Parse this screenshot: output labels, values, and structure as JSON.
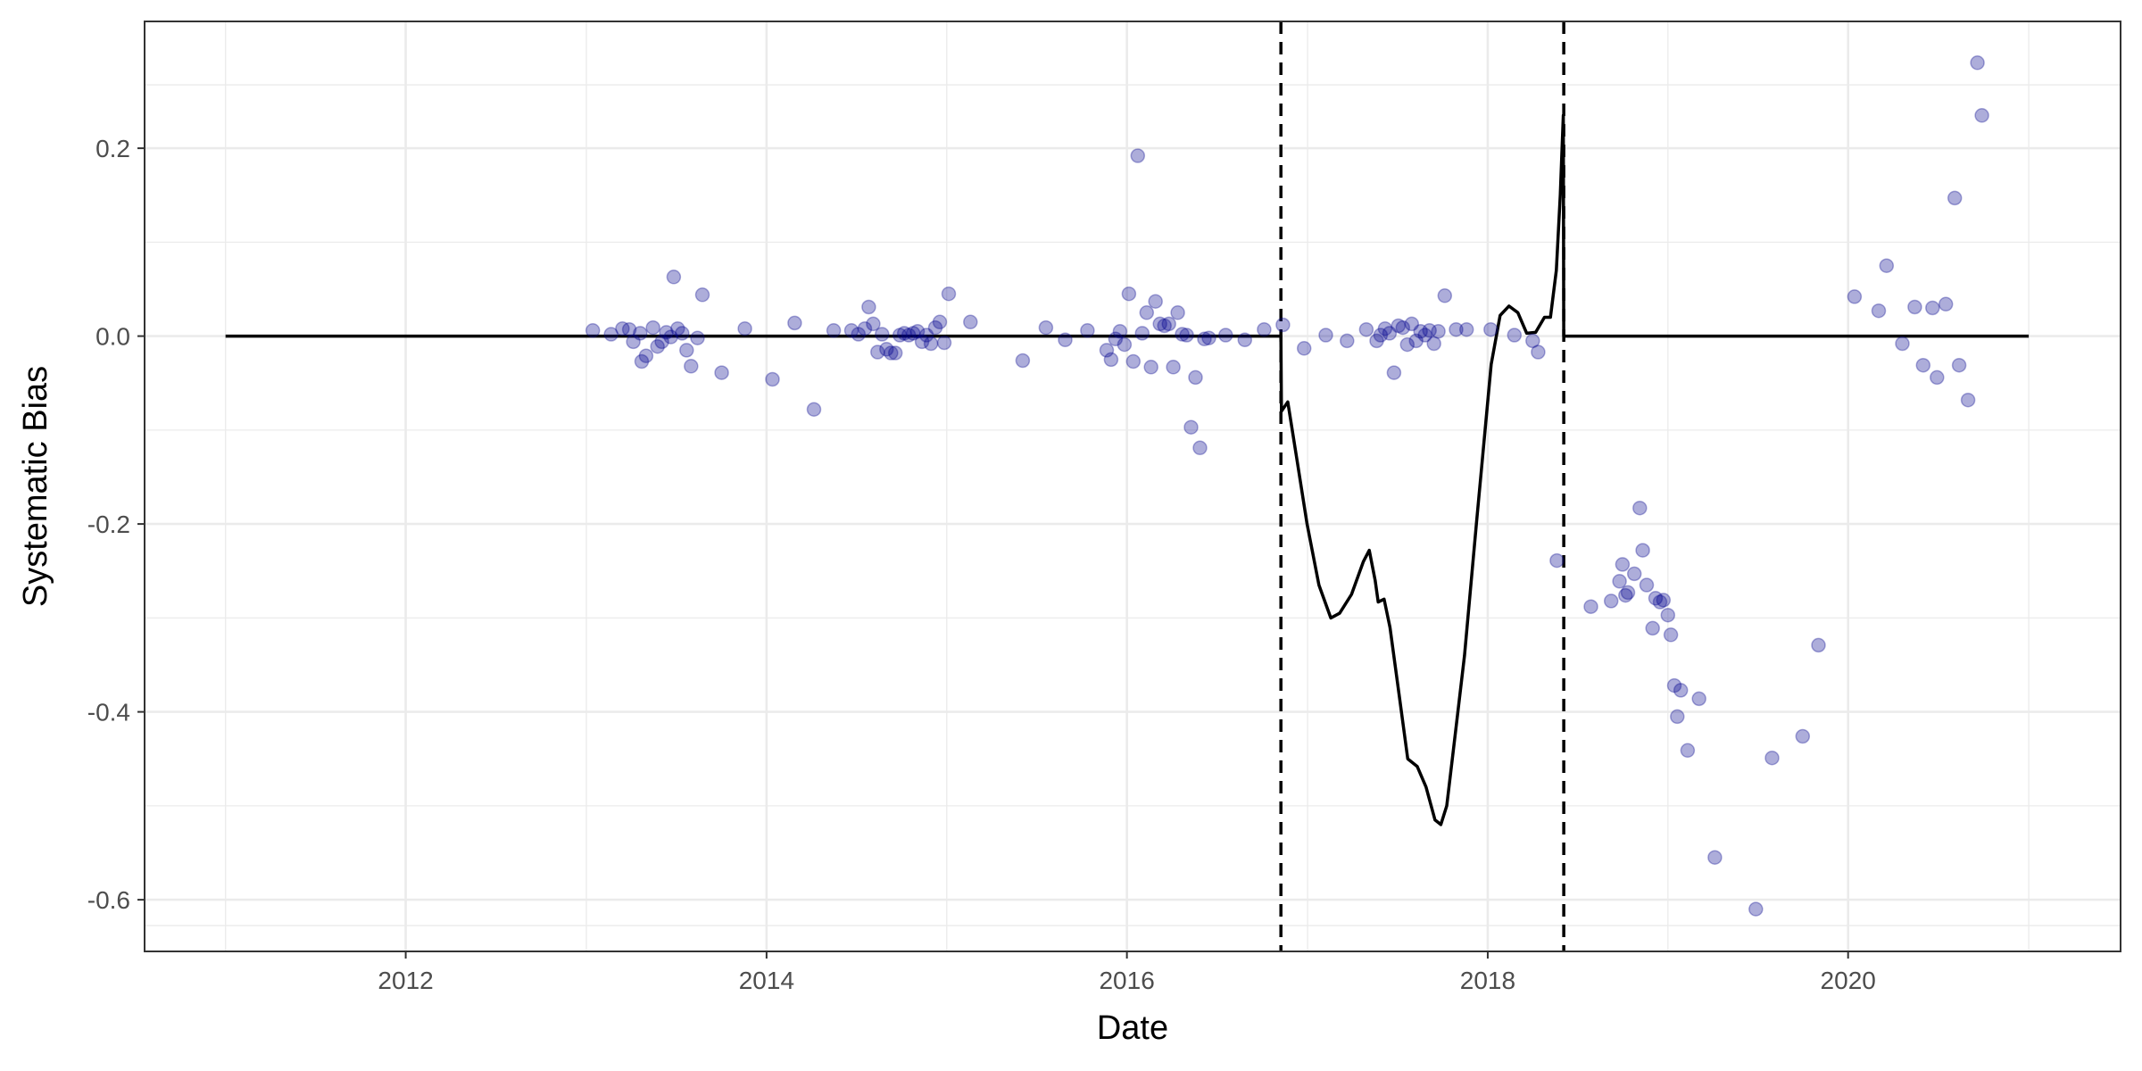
{
  "chart_data": {
    "type": "scatter",
    "title": "",
    "xlabel": "Date",
    "ylabel": "Systematic Bias",
    "x_axis": {
      "kind": "date",
      "range": [
        "2010-07-21",
        "2021-07-06"
      ],
      "ticks": [
        "2012",
        "2014",
        "2016",
        "2018",
        "2020"
      ]
    },
    "y_axis": {
      "range": [
        -0.655,
        0.335
      ],
      "ticks": [
        -0.6,
        -0.4,
        -0.2,
        0.0,
        0.2
      ],
      "tick_labels": [
        "-0.6",
        "-0.4",
        "-0.2",
        "0.0",
        "0.2"
      ]
    },
    "grid": true,
    "legend": "none",
    "colors": {
      "points": "#00008b",
      "line": "#000000",
      "vlines": "#000000",
      "grid": "#ebebeb",
      "panel_border": "#333333"
    },
    "vertical_lines": [
      "2016-11-08",
      "2018-06-04"
    ],
    "series": [
      {
        "type": "scatter",
        "points": [
          {
            "x": "2013-01-14",
            "y": 0.006
          },
          {
            "x": "2013-02-20",
            "y": 0.002
          },
          {
            "x": "2013-03-15",
            "y": 0.008
          },
          {
            "x": "2013-03-29",
            "y": 0.007
          },
          {
            "x": "2013-04-06",
            "y": -0.006
          },
          {
            "x": "2013-04-20",
            "y": 0.003
          },
          {
            "x": "2013-04-23",
            "y": -0.027
          },
          {
            "x": "2013-05-02",
            "y": -0.021
          },
          {
            "x": "2013-05-16",
            "y": 0.009
          },
          {
            "x": "2013-05-25",
            "y": -0.011
          },
          {
            "x": "2013-06-03",
            "y": -0.006
          },
          {
            "x": "2013-06-12",
            "y": 0.004
          },
          {
            "x": "2013-06-21",
            "y": -0.001
          },
          {
            "x": "2013-06-27",
            "y": 0.063
          },
          {
            "x": "2013-07-05",
            "y": 0.008
          },
          {
            "x": "2013-07-14",
            "y": 0.003
          },
          {
            "x": "2013-07-23",
            "y": -0.015
          },
          {
            "x": "2013-08-01",
            "y": -0.032
          },
          {
            "x": "2013-08-14",
            "y": -0.002
          },
          {
            "x": "2013-08-24",
            "y": 0.044
          },
          {
            "x": "2013-10-02",
            "y": -0.039
          },
          {
            "x": "2013-11-18",
            "y": 0.008
          },
          {
            "x": "2014-01-13",
            "y": -0.046
          },
          {
            "x": "2014-02-27",
            "y": 0.014
          },
          {
            "x": "2014-04-07",
            "y": -0.078
          },
          {
            "x": "2014-05-17",
            "y": 0.006
          },
          {
            "x": "2014-06-22",
            "y": 0.006
          },
          {
            "x": "2014-07-06",
            "y": 0.002
          },
          {
            "x": "2014-07-19",
            "y": 0.008
          },
          {
            "x": "2014-07-27",
            "y": 0.031
          },
          {
            "x": "2014-08-05",
            "y": 0.013
          },
          {
            "x": "2014-08-14",
            "y": -0.017
          },
          {
            "x": "2014-08-23",
            "y": 0.002
          },
          {
            "x": "2014-09-01",
            "y": -0.014
          },
          {
            "x": "2014-09-10",
            "y": -0.018
          },
          {
            "x": "2014-09-19",
            "y": -0.018
          },
          {
            "x": "2014-09-28",
            "y": 0.001
          },
          {
            "x": "2014-10-07",
            "y": 0.003
          },
          {
            "x": "2014-10-16",
            "y": 0.001
          },
          {
            "x": "2014-10-25",
            "y": 0.003
          },
          {
            "x": "2014-11-03",
            "y": 0.005
          },
          {
            "x": "2014-11-12",
            "y": -0.006
          },
          {
            "x": "2014-11-21",
            "y": 0.001
          },
          {
            "x": "2014-11-30",
            "y": -0.008
          },
          {
            "x": "2014-12-09",
            "y": 0.009
          },
          {
            "x": "2014-12-18",
            "y": 0.015
          },
          {
            "x": "2014-12-27",
            "y": -0.007
          },
          {
            "x": "2015-01-05",
            "y": 0.045
          },
          {
            "x": "2015-02-18",
            "y": 0.015
          },
          {
            "x": "2015-06-04",
            "y": -0.026
          },
          {
            "x": "2015-07-21",
            "y": 0.009
          },
          {
            "x": "2015-08-29",
            "y": -0.004
          },
          {
            "x": "2015-10-13",
            "y": 0.006
          },
          {
            "x": "2015-11-21",
            "y": -0.015
          },
          {
            "x": "2015-11-30",
            "y": -0.025
          },
          {
            "x": "2015-12-09",
            "y": -0.003
          },
          {
            "x": "2015-12-18",
            "y": 0.005
          },
          {
            "x": "2015-12-27",
            "y": -0.009
          },
          {
            "x": "2016-01-05",
            "y": 0.045
          },
          {
            "x": "2016-01-14",
            "y": -0.027
          },
          {
            "x": "2016-01-23",
            "y": 0.192
          },
          {
            "x": "2016-02-01",
            "y": 0.003
          },
          {
            "x": "2016-02-10",
            "y": 0.025
          },
          {
            "x": "2016-02-19",
            "y": -0.033
          },
          {
            "x": "2016-02-28",
            "y": 0.037
          },
          {
            "x": "2016-03-08",
            "y": 0.013
          },
          {
            "x": "2016-03-17",
            "y": 0.011
          },
          {
            "x": "2016-03-26",
            "y": 0.013
          },
          {
            "x": "2016-04-04",
            "y": -0.033
          },
          {
            "x": "2016-04-13",
            "y": 0.025
          },
          {
            "x": "2016-04-22",
            "y": 0.002
          },
          {
            "x": "2016-05-01",
            "y": 0.001
          },
          {
            "x": "2016-05-10",
            "y": -0.097
          },
          {
            "x": "2016-05-19",
            "y": -0.044
          },
          {
            "x": "2016-05-28",
            "y": -0.119
          },
          {
            "x": "2016-06-06",
            "y": -0.003
          },
          {
            "x": "2016-06-15",
            "y": -0.002
          },
          {
            "x": "2016-07-19",
            "y": 0.001
          },
          {
            "x": "2016-08-27",
            "y": -0.004
          },
          {
            "x": "2016-10-05",
            "y": 0.007
          },
          {
            "x": "2016-11-12",
            "y": 0.012
          },
          {
            "x": "2016-12-25",
            "y": -0.013
          },
          {
            "x": "2017-02-07",
            "y": 0.001
          },
          {
            "x": "2017-03-22",
            "y": -0.005
          },
          {
            "x": "2017-04-30",
            "y": 0.007
          },
          {
            "x": "2017-05-21",
            "y": -0.005
          },
          {
            "x": "2017-05-29",
            "y": 0.001
          },
          {
            "x": "2017-06-07",
            "y": 0.008
          },
          {
            "x": "2017-06-16",
            "y": 0.003
          },
          {
            "x": "2017-06-25",
            "y": -0.039
          },
          {
            "x": "2017-07-04",
            "y": 0.011
          },
          {
            "x": "2017-07-13",
            "y": 0.009
          },
          {
            "x": "2017-07-22",
            "y": -0.009
          },
          {
            "x": "2017-07-31",
            "y": 0.013
          },
          {
            "x": "2017-08-09",
            "y": -0.005
          },
          {
            "x": "2017-08-18",
            "y": 0.005
          },
          {
            "x": "2017-08-27",
            "y": 0.001
          },
          {
            "x": "2017-09-05",
            "y": 0.006
          },
          {
            "x": "2017-09-14",
            "y": -0.008
          },
          {
            "x": "2017-09-23",
            "y": 0.005
          },
          {
            "x": "2017-10-06",
            "y": 0.043
          },
          {
            "x": "2017-10-29",
            "y": 0.007
          },
          {
            "x": "2017-11-19",
            "y": 0.007
          },
          {
            "x": "2018-01-07",
            "y": 0.007
          },
          {
            "x": "2018-02-24",
            "y": 0.001
          },
          {
            "x": "2018-04-02",
            "y": -0.005
          },
          {
            "x": "2018-04-13",
            "y": -0.017
          },
          {
            "x": "2018-05-21",
            "y": -0.239
          },
          {
            "x": "2018-07-29",
            "y": -0.288
          },
          {
            "x": "2018-09-08",
            "y": -0.282
          },
          {
            "x": "2018-09-25",
            "y": -0.261
          },
          {
            "x": "2018-10-01",
            "y": -0.243
          },
          {
            "x": "2018-10-07",
            "y": -0.276
          },
          {
            "x": "2018-10-12",
            "y": -0.273
          },
          {
            "x": "2018-10-25",
            "y": -0.253
          },
          {
            "x": "2018-11-05",
            "y": -0.183
          },
          {
            "x": "2018-11-11",
            "y": -0.228
          },
          {
            "x": "2018-11-19",
            "y": -0.265
          },
          {
            "x": "2018-12-01",
            "y": -0.311
          },
          {
            "x": "2018-12-07",
            "y": -0.279
          },
          {
            "x": "2018-12-16",
            "y": -0.283
          },
          {
            "x": "2018-12-23",
            "y": -0.281
          },
          {
            "x": "2019-01-01",
            "y": -0.297
          },
          {
            "x": "2019-01-07",
            "y": -0.318
          },
          {
            "x": "2019-01-14",
            "y": -0.372
          },
          {
            "x": "2019-01-20",
            "y": -0.405
          },
          {
            "x": "2019-01-27",
            "y": -0.377
          },
          {
            "x": "2019-02-10",
            "y": -0.441
          },
          {
            "x": "2019-03-05",
            "y": -0.386
          },
          {
            "x": "2019-04-06",
            "y": -0.555
          },
          {
            "x": "2019-06-28",
            "y": -0.61
          },
          {
            "x": "2019-07-31",
            "y": -0.449
          },
          {
            "x": "2019-10-01",
            "y": -0.426
          },
          {
            "x": "2019-11-02",
            "y": -0.329
          },
          {
            "x": "2020-01-14",
            "y": 0.042
          },
          {
            "x": "2020-03-03",
            "y": 0.027
          },
          {
            "x": "2020-03-19",
            "y": 0.075
          },
          {
            "x": "2020-04-20",
            "y": -0.008
          },
          {
            "x": "2020-05-15",
            "y": 0.031
          },
          {
            "x": "2020-06-01",
            "y": -0.031
          },
          {
            "x": "2020-06-20",
            "y": 0.03
          },
          {
            "x": "2020-06-29",
            "y": -0.044
          },
          {
            "x": "2020-07-17",
            "y": 0.034
          },
          {
            "x": "2020-08-04",
            "y": 0.147
          },
          {
            "x": "2020-08-13",
            "y": -0.031
          },
          {
            "x": "2020-08-31",
            "y": -0.068
          },
          {
            "x": "2020-09-19",
            "y": 0.291
          },
          {
            "x": "2020-09-28",
            "y": 0.235
          }
        ]
      },
      {
        "type": "line",
        "points": [
          {
            "x": "2011-01-01",
            "y": 0.0
          },
          {
            "x": "2016-11-08",
            "y": 0.0
          },
          {
            "x": "2016-11-09",
            "y": -0.08
          },
          {
            "x": "2016-11-22",
            "y": -0.07
          },
          {
            "x": "2016-12-10",
            "y": -0.13
          },
          {
            "x": "2016-12-31",
            "y": -0.2
          },
          {
            "x": "2017-01-24",
            "y": -0.265
          },
          {
            "x": "2017-02-17",
            "y": -0.3
          },
          {
            "x": "2017-03-07",
            "y": -0.295
          },
          {
            "x": "2017-03-31",
            "y": -0.275
          },
          {
            "x": "2017-04-24",
            "y": -0.24
          },
          {
            "x": "2017-05-06",
            "y": -0.228
          },
          {
            "x": "2017-05-18",
            "y": -0.26
          },
          {
            "x": "2017-05-24",
            "y": -0.283
          },
          {
            "x": "2017-06-05",
            "y": -0.28
          },
          {
            "x": "2017-06-17",
            "y": -0.31
          },
          {
            "x": "2017-07-05",
            "y": -0.38
          },
          {
            "x": "2017-07-23",
            "y": -0.45
          },
          {
            "x": "2017-08-11",
            "y": -0.458
          },
          {
            "x": "2017-08-29",
            "y": -0.48
          },
          {
            "x": "2017-09-16",
            "y": -0.515
          },
          {
            "x": "2017-09-28",
            "y": -0.52
          },
          {
            "x": "2017-10-10",
            "y": -0.5
          },
          {
            "x": "2017-10-28",
            "y": -0.42
          },
          {
            "x": "2017-11-15",
            "y": -0.34
          },
          {
            "x": "2017-12-09",
            "y": -0.2
          },
          {
            "x": "2018-01-08",
            "y": -0.03
          },
          {
            "x": "2018-01-26",
            "y": 0.022
          },
          {
            "x": "2018-02-13",
            "y": 0.032
          },
          {
            "x": "2018-03-03",
            "y": 0.025
          },
          {
            "x": "2018-03-21",
            "y": 0.003
          },
          {
            "x": "2018-04-08",
            "y": 0.004
          },
          {
            "x": "2018-04-26",
            "y": 0.02
          },
          {
            "x": "2018-05-08",
            "y": 0.02
          },
          {
            "x": "2018-05-20",
            "y": 0.07
          },
          {
            "x": "2018-05-28",
            "y": 0.15
          },
          {
            "x": "2018-06-03",
            "y": 0.235
          },
          {
            "x": "2018-06-04",
            "y": 0.0
          },
          {
            "x": "2021-01-01",
            "y": 0.0
          }
        ]
      }
    ]
  }
}
